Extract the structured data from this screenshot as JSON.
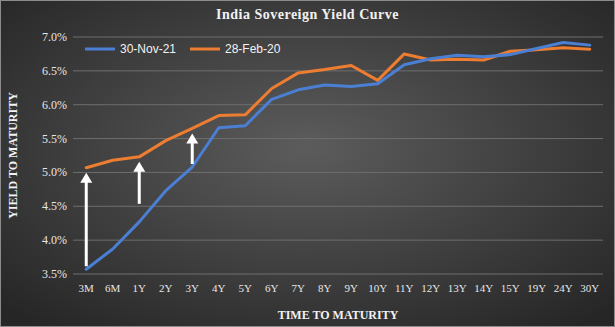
{
  "chart_data": {
    "type": "line",
    "title": "India Sovereign Yield Curve",
    "x_label": "TIME TO MATURITY",
    "y_label": "YIELD TO MATURITY",
    "categories": [
      "3M",
      "6M",
      "1Y",
      "2Y",
      "3Y",
      "4Y",
      "5Y",
      "6Y",
      "7Y",
      "8Y",
      "9Y",
      "10Y",
      "11Y",
      "12Y",
      "13Y",
      "14Y",
      "15Y",
      "19Y",
      "24Y",
      "30Y"
    ],
    "series": [
      {
        "name": "30-Nov-21",
        "color": "#4a7fd4",
        "values": [
          3.57,
          3.87,
          4.27,
          4.73,
          5.08,
          5.66,
          5.69,
          6.08,
          6.22,
          6.29,
          6.27,
          6.31,
          6.59,
          6.68,
          6.73,
          6.71,
          6.74,
          6.83,
          6.92,
          6.88
        ]
      },
      {
        "name": "28-Feb-20",
        "color": "#ed7d31",
        "values": [
          5.07,
          5.18,
          5.23,
          5.47,
          5.65,
          5.84,
          5.85,
          6.24,
          6.47,
          6.52,
          6.58,
          6.36,
          6.75,
          6.66,
          6.67,
          6.66,
          6.79,
          6.81,
          6.84,
          6.82
        ]
      }
    ],
    "ylim": [
      3.5,
      7.0
    ],
    "yticks": [
      {
        "value": 3.5,
        "label": "3.5%"
      },
      {
        "value": 4.0,
        "label": "4.0%"
      },
      {
        "value": 4.5,
        "label": "4.5%"
      },
      {
        "value": 5.0,
        "label": "5.0%"
      },
      {
        "value": 5.5,
        "label": "5.5%"
      },
      {
        "value": 6.0,
        "label": "6.0%"
      },
      {
        "value": 6.5,
        "label": "6.5%"
      },
      {
        "value": 7.0,
        "label": "7.0%"
      }
    ],
    "grid": true,
    "legend": "top-left"
  }
}
